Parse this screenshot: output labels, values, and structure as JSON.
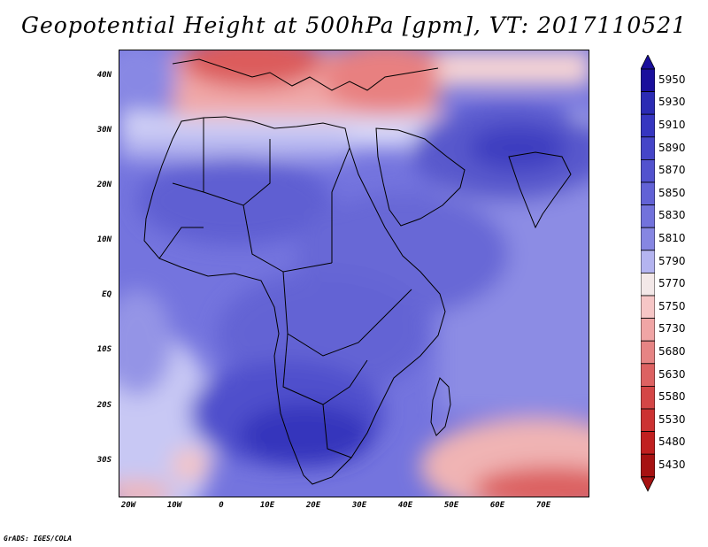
{
  "title": "Geopotential Height at 500hPa [gpm], VT: 2017110521",
  "credit": "GrADS: IGES/COLA",
  "map": {
    "variable": "Geopotential Height",
    "level": "500hPa",
    "units": "gpm",
    "valid_time": "2017110521",
    "region": "Africa",
    "lat_labels": [
      "40N",
      "30N",
      "20N",
      "10N",
      "EQ",
      "10S",
      "20S",
      "30S"
    ],
    "lon_labels": [
      "20W",
      "10W",
      "0",
      "10E",
      "20E",
      "30E",
      "40E",
      "50E",
      "60E",
      "70E"
    ]
  },
  "colorbar": {
    "levels": [
      "5950",
      "5930",
      "5910",
      "5890",
      "5870",
      "5850",
      "5830",
      "5810",
      "5790",
      "5770",
      "5750",
      "5730",
      "5680",
      "5630",
      "5580",
      "5530",
      "5480",
      "5430"
    ],
    "colors": [
      "#1a0f9c",
      "#2b2bb4",
      "#3636c0",
      "#4545c8",
      "#5252ce",
      "#6262d6",
      "#7272dc",
      "#8686e2",
      "#b4b4f0",
      "#f3e8e8",
      "#f6c6c6",
      "#f0a5a5",
      "#e68484",
      "#dd6262",
      "#d44646",
      "#cc3232",
      "#c02020",
      "#a61212"
    ]
  }
}
